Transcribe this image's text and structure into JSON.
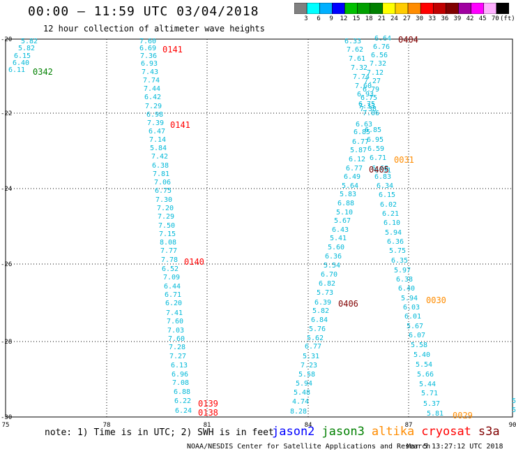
{
  "header": {
    "title": "00:00 — 11:59 UTC 03/04/2018",
    "subtitle": "12 hour collection of altimeter wave heights"
  },
  "legend": {
    "colors": [
      "#808080",
      "#00ffff",
      "#00b0ff",
      "#0000ff",
      "#00c000",
      "#00a000",
      "#008000",
      "#ffff00",
      "#ffcc00",
      "#ff8c00",
      "#ff0000",
      "#c00000",
      "#800000",
      "#a000a0",
      "#ff00ff",
      "#ffb0ff",
      "#000000"
    ],
    "labels": [
      "3",
      "6",
      "9",
      "12",
      "15",
      "18",
      "21",
      "24",
      "27",
      "30",
      "33",
      "36",
      "39",
      "42",
      "45",
      "70",
      "(ft)"
    ]
  },
  "map": {
    "x_ticks": [
      "75",
      "78",
      "81",
      "84",
      "87",
      "90"
    ],
    "y_ticks": [
      "-20",
      "-22",
      "-24",
      "-26",
      "-28",
      "-30"
    ],
    "pass_labels": [
      {
        "text": "0342",
        "color": "#008000"
      },
      {
        "text": "0141",
        "color": "#ff0000"
      },
      {
        "text": "0141",
        "color": "#ff0000"
      },
      {
        "text": "0140",
        "color": "#ff0000"
      },
      {
        "text": "0139",
        "color": "#ff0000"
      },
      {
        "text": "0138",
        "color": "#ff0000"
      },
      {
        "text": "0404",
        "color": "#800000"
      },
      {
        "text": "0405",
        "color": "#800000"
      },
      {
        "text": "0406",
        "color": "#800000"
      },
      {
        "text": "0031",
        "color": "#ff8c00"
      },
      {
        "text": "0030",
        "color": "#ff8c00"
      },
      {
        "text": "0029",
        "color": "#ff8c00"
      }
    ],
    "tracks": [
      {
        "name": "track-0342",
        "labels": [
          "5.82",
          "5.82",
          "6.15",
          "6.40",
          "6.11"
        ]
      },
      {
        "name": "track-0141-0138",
        "labels": [
          "7.60",
          "6.69",
          "7.36",
          "6.93",
          "7.43",
          "7.74",
          "7.44",
          "6.42",
          "7.29",
          "6.98",
          "7.39",
          "6.47",
          "7.14",
          "5.84",
          "7.42",
          "6.38",
          "7.81",
          "7.06",
          "6.75",
          "7.30",
          "7.20",
          "7.29",
          "7.50",
          "7.15",
          "8.08",
          "7.77",
          "7.78",
          "6.52",
          "7.09",
          "6.44",
          "6.71",
          "6.20",
          "7.41",
          "7.60",
          "7.03",
          "7.60",
          "7.28",
          "7.27",
          "6.13",
          "6.96",
          "7.08",
          "6.88",
          "6.22",
          "6.24"
        ]
      },
      {
        "name": "track-0404-upper-left",
        "labels": [
          "6.33",
          "7.62",
          "7.61",
          "7.32",
          "7.74",
          "7.60",
          "6.93",
          "6.75",
          "7.38"
        ]
      },
      {
        "name": "track-0404-upper-right",
        "labels": [
          "6.64",
          "6.76",
          "6.56",
          "7.32",
          "7.12",
          "7.27",
          "6.79",
          "6.75",
          "7.33",
          "7.06"
        ]
      },
      {
        "name": "track-0404-0406",
        "labels": [
          "6.63",
          "6.85",
          "6.77",
          "5.87",
          "6.12",
          "6.77",
          "6.49",
          "5.64",
          "5.83",
          "6.88",
          "5.10",
          "5.67",
          "6.43",
          "5.41",
          "5.60",
          "6.36",
          "5.54",
          "6.70",
          "6.82",
          "5.73",
          "6.39",
          "5.82",
          "6.84",
          "5.76",
          "5.62",
          "6.77",
          "5.31",
          "7.23",
          "5.58",
          "5.94",
          "5.48",
          "4.74",
          "8.28"
        ]
      },
      {
        "name": "track-0031-0029",
        "labels": [
          "6.85",
          "6.95",
          "6.59",
          "6.71",
          "6.68",
          "6.31",
          "6.83",
          "6.34",
          "6.15",
          "6.02",
          "6.21",
          "6.10",
          "5.94",
          "6.36",
          "5.75",
          "6.35",
          "5.97",
          "6.38",
          "6.40",
          "5.94",
          "6.03",
          "6.01",
          "5.67",
          "6.07",
          "5.58",
          "5.40",
          "5.54",
          "5.66",
          "5.44",
          "5.71",
          "5.37",
          "5.81"
        ]
      },
      {
        "name": "track-edge",
        "labels": [
          "5",
          "5"
        ]
      }
    ]
  },
  "footer": {
    "note": "note: 1) Time is in UTC; 2) SWH is in feet",
    "satellites": [
      {
        "name": "jason2",
        "color": "#0000ff"
      },
      {
        "name": "jason3",
        "color": "#008000"
      },
      {
        "name": "altika",
        "color": "#ff8c00"
      },
      {
        "name": "cryosat",
        "color": "#ff0000"
      },
      {
        "name": "s3a",
        "color": "#800000"
      }
    ],
    "credit": "NOAA/NESDIS Center for Satellite Applications and Research",
    "timestamp": "Mar  5 13:27:12 UTC 2018"
  }
}
